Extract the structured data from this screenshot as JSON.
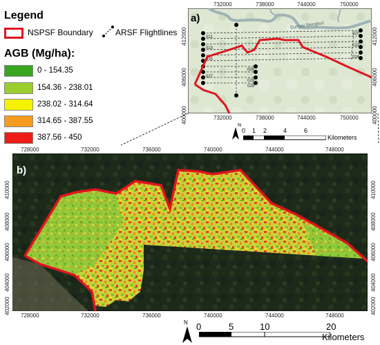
{
  "legend": {
    "title": "Legend",
    "boundary_label": "NSPSF Boundary",
    "flightlines_label": "ARSF Flightlines",
    "agb_title": "AGB (Mg/ha):",
    "classes": [
      {
        "label": "0 - 154.35",
        "color": "#3aa620"
      },
      {
        "label": "154.36 - 238.01",
        "color": "#9ccd2e"
      },
      {
        "label": "238.02 - 314.64",
        "color": "#f5f200"
      },
      {
        "label": "314.65 - 387.55",
        "color": "#f59b1f"
      },
      {
        "label": "387.56 - 450",
        "color": "#ed1c16"
      }
    ]
  },
  "map_a": {
    "label": "a)",
    "river_label": "Sungai Bengkul",
    "x_ticks": [
      "732000",
      "738000",
      "744000",
      "750000"
    ],
    "y_ticks": [
      "412000",
      "406000",
      "400000"
    ],
    "flightline_labels": [
      "020",
      "021",
      "022",
      "023",
      "024",
      "025",
      "026",
      "027",
      "028",
      "029"
    ],
    "scalebar": {
      "ticks": [
        "0",
        "1",
        "2",
        "4",
        "6"
      ],
      "unit": "Kilometers"
    },
    "north_label": "N"
  },
  "map_b": {
    "label": "b)",
    "x_ticks": [
      "728000",
      "732000",
      "736000",
      "740000",
      "744000",
      "748000"
    ],
    "y_ticks": [
      "410000",
      "408000",
      "406000",
      "404000",
      "402000"
    ],
    "scalebar": {
      "ticks": [
        "0",
        "5",
        "10",
        "20"
      ],
      "unit": "Kilometers"
    },
    "north_label": "N"
  },
  "colors": {
    "boundary": "#e0141e"
  }
}
